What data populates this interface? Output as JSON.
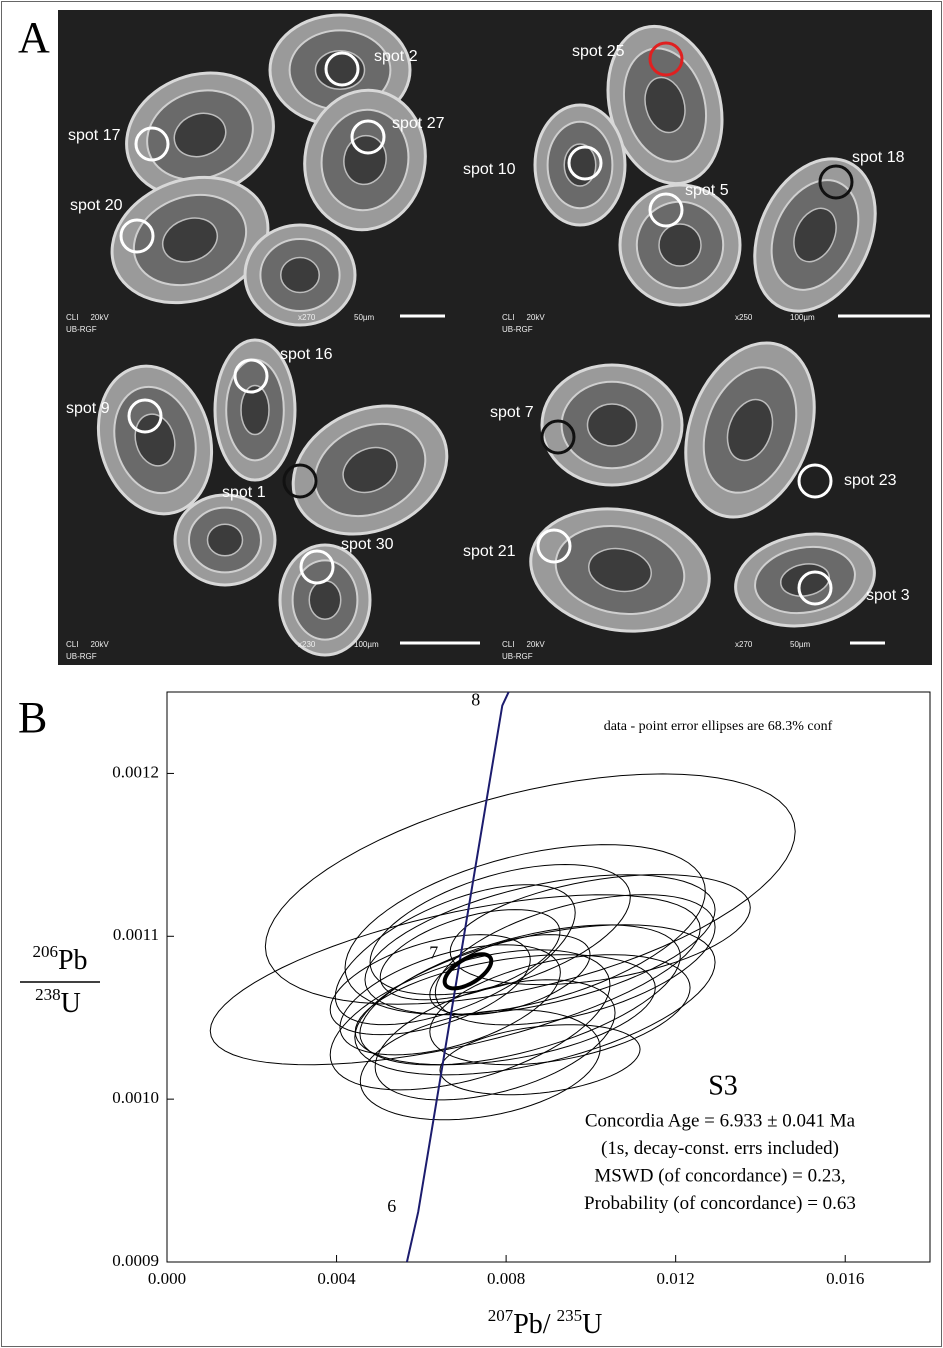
{
  "panel_a": {
    "label": "A",
    "spots": [
      {
        "label": "spot 2",
        "color": "#ffffff"
      },
      {
        "label": "spot 17",
        "color": "#ffffff"
      },
      {
        "label": "spot 27",
        "color": "#ffffff"
      },
      {
        "label": "spot 20",
        "color": "#ffffff"
      },
      {
        "label": "spot 25",
        "color": "#e02020"
      },
      {
        "label": "spot 10",
        "color": "#ffffff"
      },
      {
        "label": "spot 5",
        "color": "#ffffff"
      },
      {
        "label": "spot 18",
        "color": "#111111"
      },
      {
        "label": "spot 16",
        "color": "#ffffff"
      },
      {
        "label": "spot 9",
        "color": "#ffffff"
      },
      {
        "label": "spot 1",
        "color": "#111111"
      },
      {
        "label": "spot 30",
        "color": "#ffffff"
      },
      {
        "label": "spot 7",
        "color": "#111111"
      },
      {
        "label": "spot 23",
        "color": "#ffffff"
      },
      {
        "label": "spot 21",
        "color": "#ffffff"
      },
      {
        "label": "spot 3",
        "color": "#ffffff"
      }
    ],
    "captions": [
      {
        "instrument": "CLI",
        "voltage": "20kV",
        "lab": "UB-RGF",
        "magnification": "x270",
        "scale": "50µm"
      },
      {
        "instrument": "CLI",
        "voltage": "20kV",
        "lab": "UB-RGF",
        "magnification": "x250",
        "scale": "100µm"
      },
      {
        "instrument": "CLI",
        "voltage": "20kV",
        "lab": "UB-RGF",
        "magnification": "x230",
        "scale": "100µm"
      },
      {
        "instrument": "CLI",
        "voltage": "20kV",
        "lab": "UB-RGF",
        "magnification": "x270",
        "scale": "50µm"
      }
    ]
  },
  "chart_data": {
    "type": "concordia",
    "panel_label": "B",
    "note": "data - point error ellipses are 68.3% conf",
    "sample": "S3",
    "stats": [
      "Concordia Age = 6.933 ± 0.041 Ma",
      "(1s, decay-const. errs included)",
      "MSWD (of concordance) = 0.23,",
      "Probability (of concordance) = 0.63"
    ],
    "x_label": {
      "mass": "207",
      "element": "Pb",
      "sep": "/",
      "mass2": "235",
      "element2": "U"
    },
    "y_label": {
      "mass": "206",
      "element": "Pb",
      "mass2": "238",
      "element2": "U"
    },
    "xlim": [
      0,
      0.018
    ],
    "ylim": [
      0.0009,
      0.00125
    ],
    "xticks": [
      {
        "value": 0,
        "label": "0.000"
      },
      0.004,
      0.008,
      0.012,
      0.016
    ],
    "yticks": [
      0.0009,
      {
        "value": 0.001,
        "label": "0.0010"
      },
      0.0011,
      0.0012
    ],
    "concordia": {
      "color": "#1c1c6e",
      "x": [
        0.00566,
        0.005926,
        0.006917,
        0.00791,
        0.00806
      ],
      "y": [
        0.0009,
        0.00093075,
        0.0010864,
        0.0012417,
        0.00125
      ],
      "ages": [
        6,
        7,
        8
      ],
      "age_x": [
        0.005926,
        0.006917,
        0.00791
      ],
      "age_y": [
        0.00093075,
        0.0010864,
        0.0012417
      ]
    },
    "ellipses": [
      {
        "x": 0.00857,
        "y": 0.001129,
        "x_err": 0.00625,
        "y_err": 7.07e-05,
        "rho": 0.5
      },
      {
        "x": 0.0068,
        "y": 0.0010733,
        "x_err": 0.00578,
        "y_err": 5.22e-05,
        "rho": 0.6
      },
      {
        "x": 0.00868,
        "y": 0.001061,
        "x_err": 0.00425,
        "y_err": 4.61e-05,
        "rho": 0.5
      },
      {
        "x": 0.00963,
        "y": 0.0010856,
        "x_err": 0.0033,
        "y_err": 4e-05,
        "rho": 0.5
      },
      {
        "x": 0.0088,
        "y": 0.0010948,
        "x_err": 0.00413,
        "y_err": 4.3e-05,
        "rho": 0.5
      },
      {
        "x": 0.00833,
        "y": 0.001064,
        "x_err": 0.00378,
        "y_err": 4.3e-05,
        "rho": 0.55
      },
      {
        "x": 0.00715,
        "y": 0.0010487,
        "x_err": 0.0033,
        "y_err": 4.3e-05,
        "rho": 0.5
      },
      {
        "x": 0.00774,
        "y": 0.0010364,
        "x_err": 0.00283,
        "y_err": 3.69e-05,
        "rho": 0.45
      },
      {
        "x": 0.00668,
        "y": 0.001061,
        "x_err": 0.0026,
        "y_err": 3.38e-05,
        "rho": 0.5
      },
      {
        "x": 0.00786,
        "y": 0.0011041,
        "x_err": 0.00307,
        "y_err": 4e-05,
        "rho": 0.5
      },
      {
        "x": 0.00927,
        "y": 0.0010549,
        "x_err": 0.00307,
        "y_err": 3.38e-05,
        "rho": 0.4
      },
      {
        "x": 0.00715,
        "y": 0.0010887,
        "x_err": 0.00212,
        "y_err": 2.77e-05,
        "rho": 0.5
      },
      {
        "x": 0.00621,
        "y": 0.0010703,
        "x_err": 0.00236,
        "y_err": 3.07e-05,
        "rho": 0.5
      },
      {
        "x": 0.00809,
        "y": 0.0010764,
        "x_err": 0.00189,
        "y_err": 2.46e-05,
        "rho": 0.5
      },
      {
        "x": 0.00739,
        "y": 0.0010211,
        "x_err": 0.00283,
        "y_err": 3.38e-05,
        "rho": 0.3
      },
      {
        "x": 0.0088,
        "y": 0.0010242,
        "x_err": 0.00236,
        "y_err": 2.15e-05,
        "rho": 0.3
      },
      {
        "x": 0.01022,
        "y": 0.0011041,
        "x_err": 0.00354,
        "y_err": 3.38e-05,
        "rho": 0.4
      },
      {
        "x": 0.00845,
        "y": 0.0011041,
        "x_err": 0.00425,
        "y_err": 5.22e-05,
        "rho": 0.45
      },
      {
        "x": 0.0068,
        "y": 0.0010887,
        "x_err": 0.00283,
        "y_err": 4.3e-05,
        "rho": 0.6
      },
      {
        "x": 0.00798,
        "y": 0.0010549,
        "x_err": 0.00354,
        "y_err": 3.38e-05,
        "rho": 0.4
      }
    ],
    "age_ellipse": {
      "x": 0.0071,
      "y": 0.0010785,
      "x_err": 0.00055,
      "y_err": 1.05e-05,
      "rho": 0.6
    }
  }
}
